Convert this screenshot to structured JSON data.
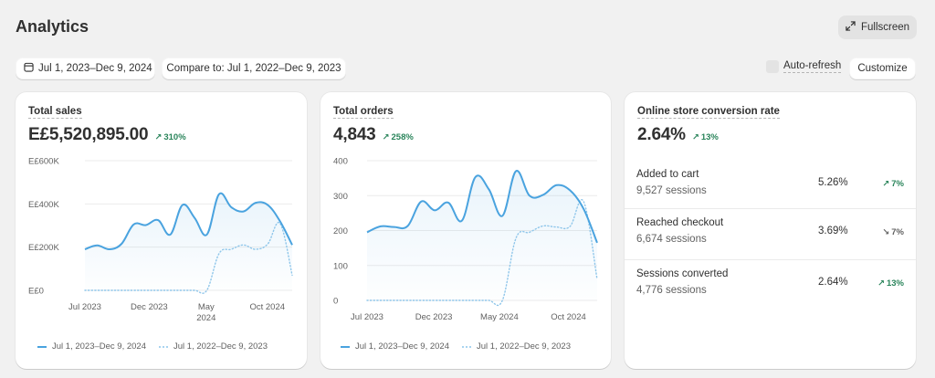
{
  "header": {
    "title": "Analytics",
    "fullscreen_label": "Fullscreen"
  },
  "toolbar": {
    "date_range": "Jul 1, 2023–Dec 9, 2024",
    "compare_label": "Compare to: Jul 1, 2022–Dec 9, 2023",
    "auto_refresh_label": "Auto-refresh",
    "auto_refresh_checked": false,
    "customize_label": "Customize"
  },
  "colors": {
    "primary_series": "#4aa3df",
    "comparison_series": "#a8d4f0",
    "positive": "#29845a",
    "neutral": "#616161"
  },
  "cards": {
    "sales": {
      "title": "Total sales",
      "value": "E£5,520,895.00",
      "change": "310%",
      "change_direction": "up"
    },
    "orders": {
      "title": "Total orders",
      "value": "4,843",
      "change": "258%",
      "change_direction": "up"
    },
    "conversion": {
      "title": "Online store conversion rate",
      "value": "2.64%",
      "change": "13%",
      "change_direction": "up",
      "rows": [
        {
          "label": "Added to cart",
          "sessions": "9,527 sessions",
          "rate": "5.26%",
          "change": "7%",
          "direction": "up"
        },
        {
          "label": "Reached checkout",
          "sessions": "6,674 sessions",
          "rate": "3.69%",
          "change": "7%",
          "direction": "down"
        },
        {
          "label": "Sessions converted",
          "sessions": "4,776 sessions",
          "rate": "2.64%",
          "change": "13%",
          "direction": "up"
        }
      ]
    }
  },
  "legend": {
    "current": "Jul 1, 2023–Dec 9, 2024",
    "previous": "Jul 1, 2022–Dec 9, 2023"
  },
  "chart_data": [
    {
      "type": "line",
      "title": "Total sales",
      "ylabel": "",
      "xlabel": "",
      "ylim": [
        0,
        600000
      ],
      "yticks": [
        0,
        200000,
        400000,
        600000
      ],
      "ytick_labels": [
        "E£0",
        "E£200K",
        "E£400K",
        "E£600K"
      ],
      "xtick_labels": [
        "Jul 2023",
        "Dec 2023",
        "May 2024",
        "Oct 2024"
      ],
      "xtick_positions": [
        0,
        0.31,
        0.585,
        0.88
      ],
      "xtick_sublabels": [
        "",
        "",
        "2024",
        ""
      ],
      "xtick_main": [
        "Jul 2023",
        "Dec 2023",
        "May",
        "Oct 2024"
      ],
      "grid": true,
      "legend_position": "bottom-left",
      "series": [
        {
          "name": "Jul 1, 2023–Dec 9, 2024",
          "style": "solid",
          "values": [
            190000,
            208000,
            190000,
            215000,
            305000,
            302000,
            325000,
            258000,
            395000,
            335000,
            258000,
            445000,
            385000,
            365000,
            405000,
            395000,
            320000,
            210000
          ]
        },
        {
          "name": "Jul 1, 2022–Dec 9, 2023",
          "style": "dotted",
          "values": [
            0,
            0,
            0,
            0,
            0,
            0,
            0,
            0,
            0,
            0,
            0,
            170000,
            190000,
            210000,
            190000,
            215000,
            310000,
            70000
          ]
        }
      ]
    },
    {
      "type": "line",
      "title": "Total orders",
      "ylabel": "",
      "xlabel": "",
      "ylim": [
        0,
        400
      ],
      "yticks": [
        0,
        100,
        200,
        300,
        400
      ],
      "ytick_labels": [
        "0",
        "100",
        "200",
        "300",
        "400"
      ],
      "xtick_labels": [
        "Jul 2023",
        "Dec 2023",
        "May 2024",
        "Oct 2024"
      ],
      "xtick_positions": [
        0,
        0.29,
        0.575,
        0.875
      ],
      "grid": true,
      "legend_position": "bottom-left",
      "series": [
        {
          "name": "Jul 1, 2023–Dec 9, 2024",
          "style": "solid",
          "values": [
            195,
            212,
            210,
            213,
            283,
            258,
            280,
            228,
            353,
            318,
            242,
            370,
            300,
            302,
            330,
            315,
            262,
            165
          ]
        },
        {
          "name": "Jul 1, 2022–Dec 9, 2023",
          "style": "dotted",
          "values": [
            0,
            0,
            0,
            0,
            0,
            0,
            0,
            0,
            0,
            0,
            0,
            178,
            195,
            213,
            210,
            212,
            283,
            60
          ]
        }
      ]
    }
  ]
}
